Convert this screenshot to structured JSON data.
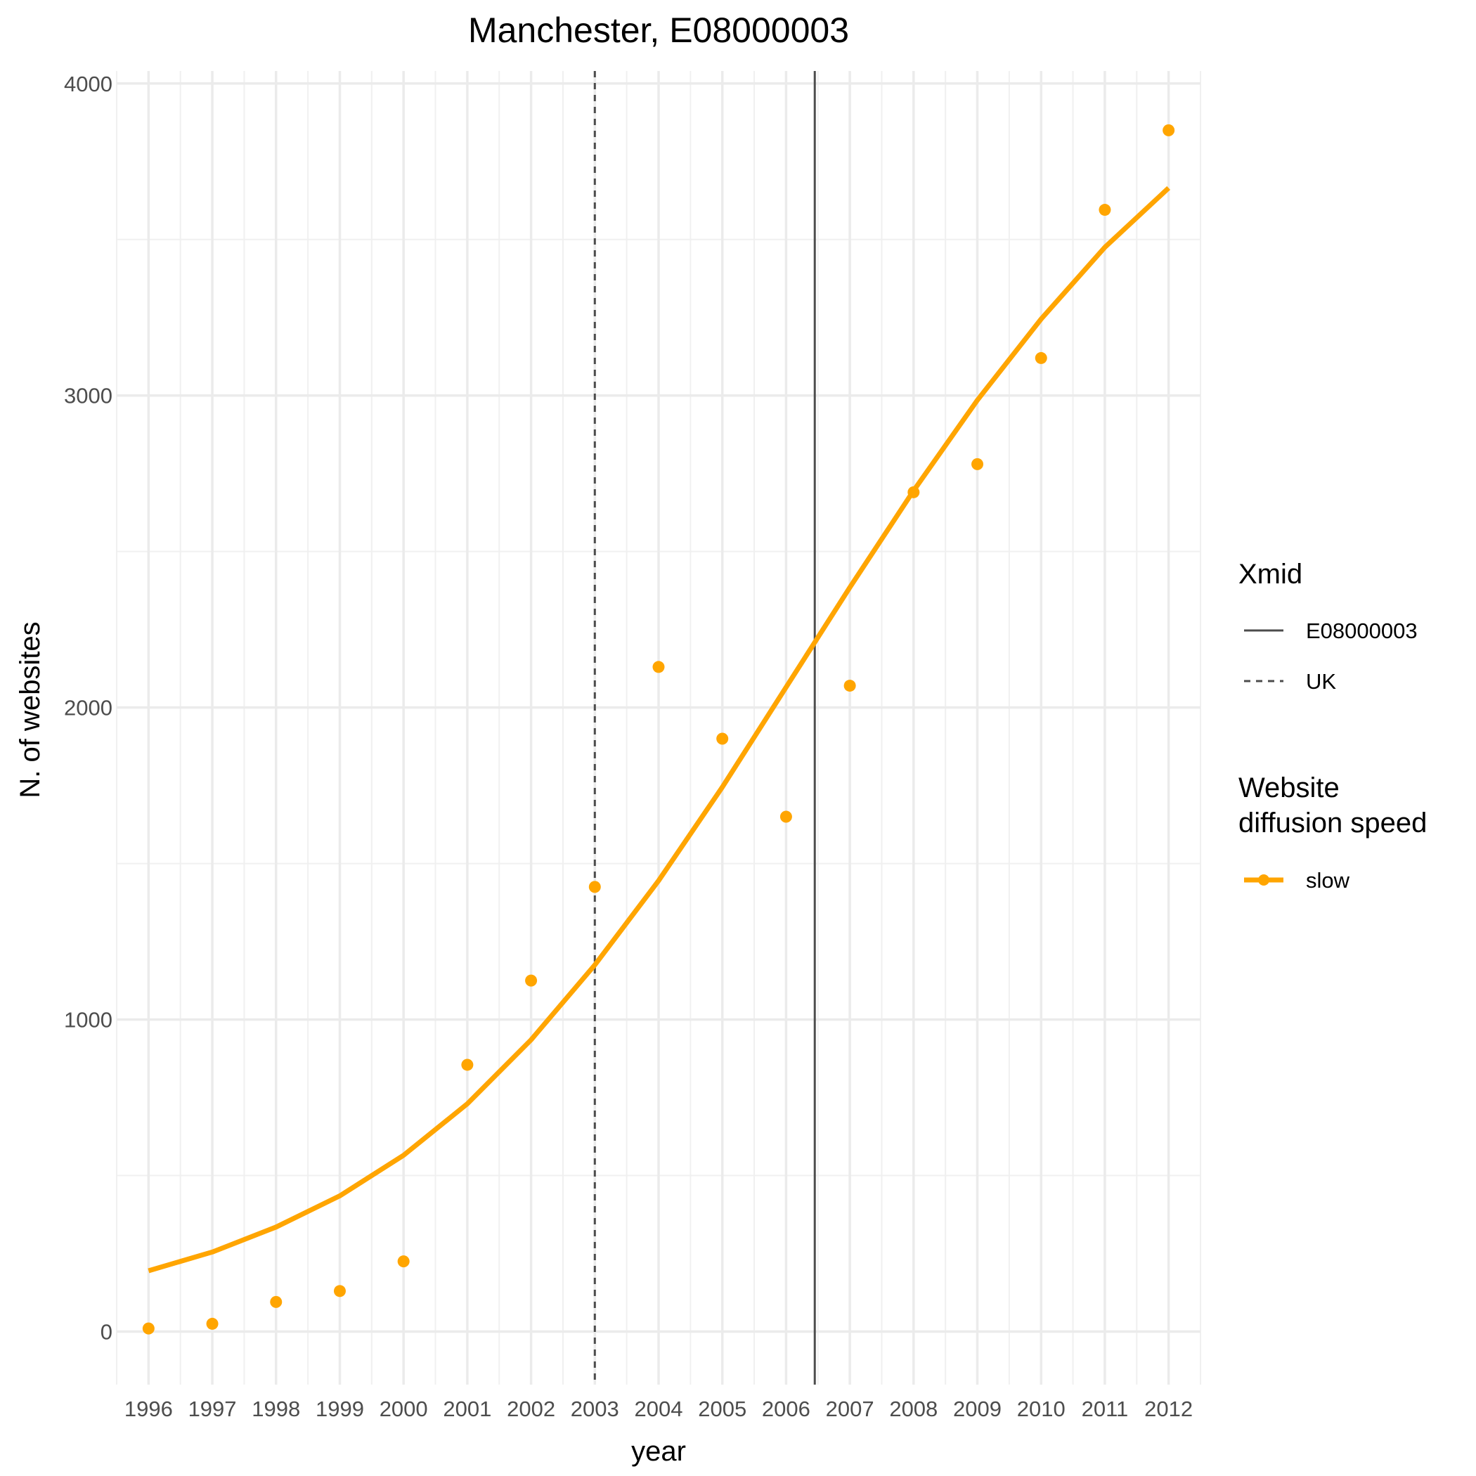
{
  "chart_data": {
    "type": "line",
    "title": "Manchester, E08000003",
    "xlabel": "year",
    "ylabel": "N. of websites",
    "x": [
      1996,
      1997,
      1998,
      1999,
      2000,
      2001,
      2002,
      2003,
      2004,
      2005,
      2006,
      2007,
      2008,
      2009,
      2010,
      2011,
      2012
    ],
    "x_tick_labels": [
      "1996",
      "1997",
      "1998",
      "1999",
      "2000",
      "2001",
      "2002",
      "2003",
      "2004",
      "2005",
      "2006",
      "2007",
      "2008",
      "2009",
      "2010",
      "2011",
      "2012"
    ],
    "y_ticks": [
      0,
      1000,
      2000,
      3000,
      4000
    ],
    "y_tick_labels": [
      "0",
      "1000",
      "2000",
      "3000",
      "4000"
    ],
    "xlim": [
      1995.5,
      2012.5
    ],
    "ylim": [
      -170,
      4040
    ],
    "grid": true,
    "series": [
      {
        "name": "slow",
        "color": "#FFA500",
        "points": [
          10,
          25,
          95,
          130,
          225,
          855,
          1125,
          1425,
          2130,
          1900,
          1650,
          2070,
          2690,
          2780,
          3120,
          3595,
          3850
        ],
        "fitted": [
          195,
          255,
          335,
          435,
          565,
          730,
          935,
          1175,
          1445,
          1745,
          2065,
          2385,
          2695,
          2985,
          3245,
          3475,
          3665
        ]
      }
    ],
    "vlines": [
      {
        "name": "E08000003",
        "x": 2006.45,
        "color": "#4d4d4d",
        "style": "solid"
      },
      {
        "name": "UK",
        "x": 2003.0,
        "color": "#4d4d4d",
        "style": "dashed"
      }
    ],
    "legend": {
      "position": "right",
      "groups": [
        {
          "title_lines": [
            "Xmid"
          ],
          "entries": [
            "E08000003",
            "UK"
          ]
        },
        {
          "title_lines": [
            "Website",
            "diffusion speed"
          ],
          "entries": [
            "slow"
          ]
        }
      ]
    }
  }
}
